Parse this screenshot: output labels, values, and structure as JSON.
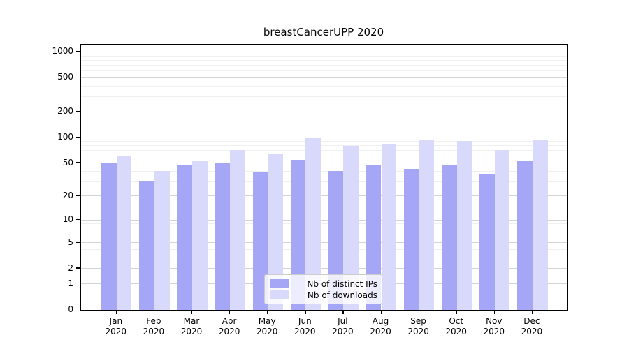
{
  "title": "breastCancerUPP 2020",
  "chart_data": {
    "type": "bar",
    "title": "breastCancerUPP 2020",
    "categories": [
      "Jan",
      "Feb",
      "Mar",
      "Apr",
      "May",
      "Jun",
      "Jul",
      "Aug",
      "Sep",
      "Oct",
      "Nov",
      "Dec"
    ],
    "category_year": "2020",
    "series": [
      {
        "name": "Nb of distinct IPs",
        "color": "#a6a6f6",
        "values": [
          50,
          30,
          46,
          49,
          38,
          54,
          40,
          47,
          42,
          47,
          36,
          52
        ]
      },
      {
        "name": "Nb of downloads",
        "color": "#d9d9fb",
        "values": [
          60,
          40,
          52,
          70,
          63,
          100,
          79,
          84,
          92,
          91,
          70,
          92
        ]
      }
    ],
    "y_scale": "log1p",
    "y_ticks": [
      0,
      1,
      2,
      5,
      10,
      20,
      50,
      100,
      200,
      500,
      1000
    ],
    "ylim": [
      0,
      1150
    ],
    "grid": true,
    "legend_position": "bottom-center",
    "colors": {
      "major_gridline": "#d4d4d4",
      "minor_gridline": "#f0f0f0",
      "axis": "#000000",
      "text": "#000000"
    }
  }
}
